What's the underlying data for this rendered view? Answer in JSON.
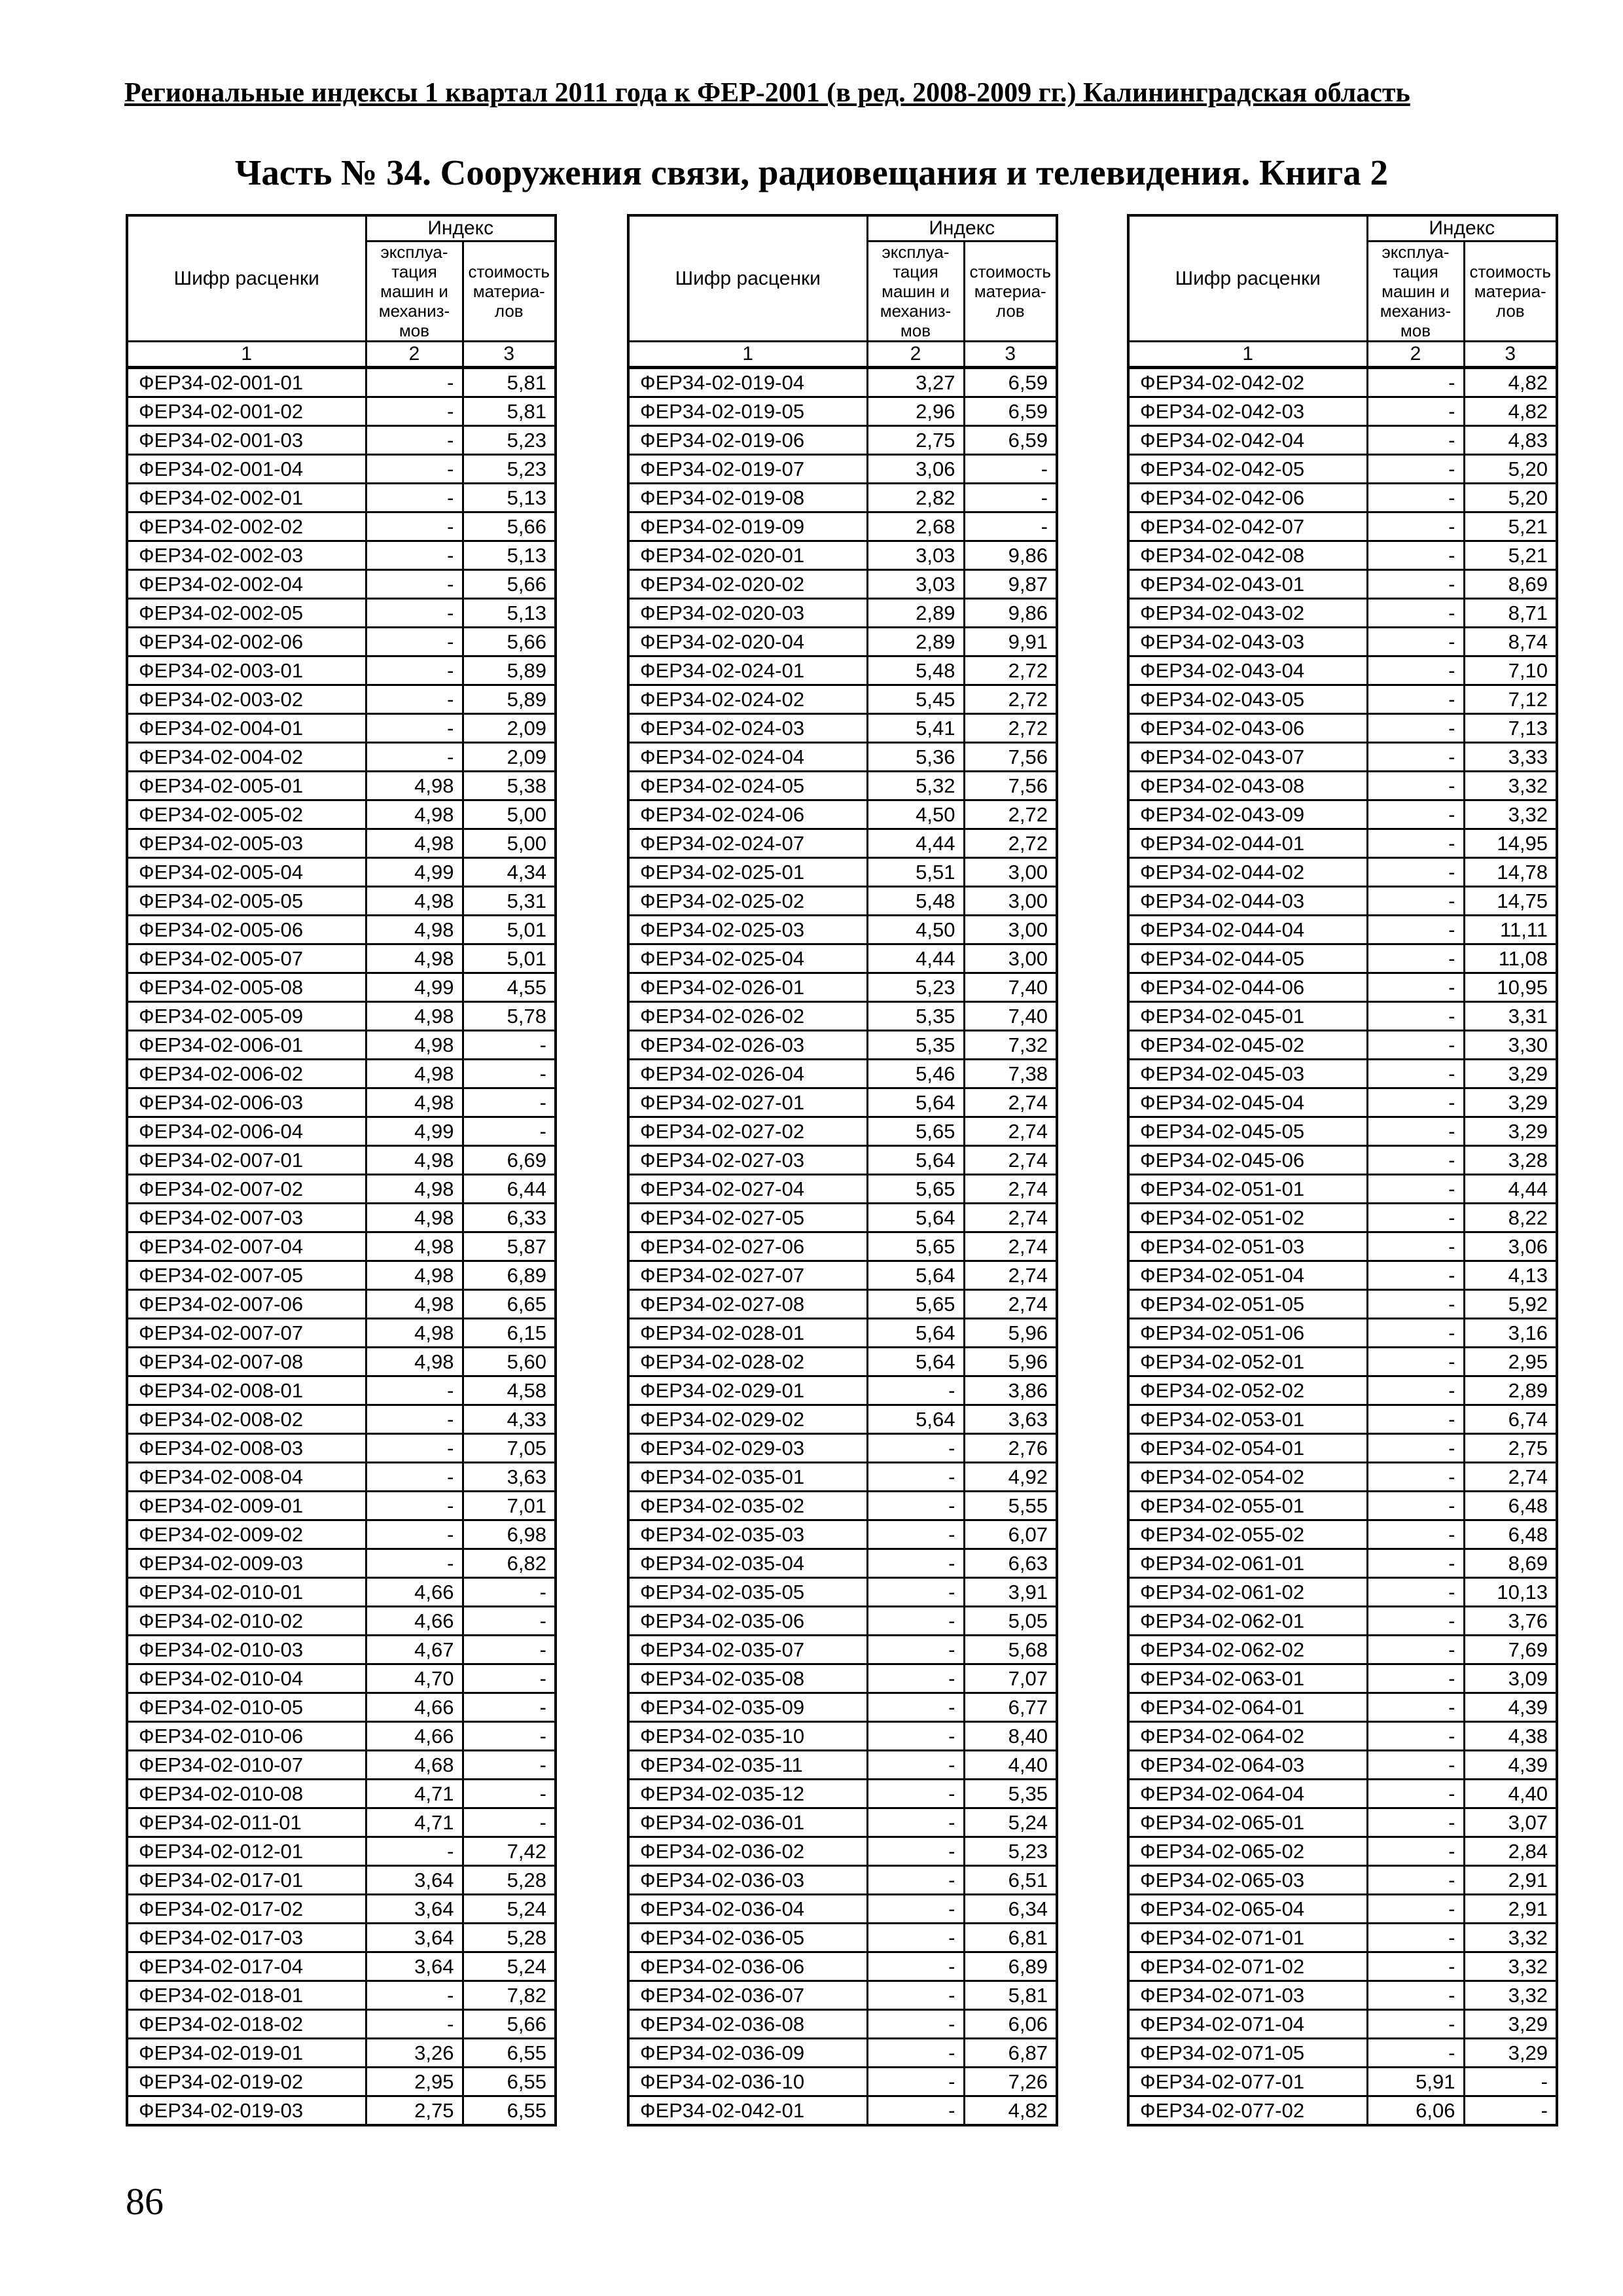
{
  "page": {
    "header": "Региональные индексы 1 квартал 2011 года к ФЕР-2001 (в ред. 2008-2009 гг.) Калининградская область",
    "title": "Часть № 34. Сооружения связи, радиовещания и телевидения. Книга 2",
    "page_number": "86"
  },
  "table_header": {
    "code": "Шифр расценки",
    "index": "Индекс",
    "col2": "эксплуа-\nтация\nмашин и\nмеханиз-\nмов",
    "col3": "стоимость\nматериа-\nлов",
    "nums": [
      "1",
      "2",
      "3"
    ]
  },
  "tables": [
    {
      "rows": [
        [
          "ФЕР34-02-001-01",
          "-",
          "5,81"
        ],
        [
          "ФЕР34-02-001-02",
          "-",
          "5,81"
        ],
        [
          "ФЕР34-02-001-03",
          "-",
          "5,23"
        ],
        [
          "ФЕР34-02-001-04",
          "-",
          "5,23"
        ],
        [
          "ФЕР34-02-002-01",
          "-",
          "5,13"
        ],
        [
          "ФЕР34-02-002-02",
          "-",
          "5,66"
        ],
        [
          "ФЕР34-02-002-03",
          "-",
          "5,13"
        ],
        [
          "ФЕР34-02-002-04",
          "-",
          "5,66"
        ],
        [
          "ФЕР34-02-002-05",
          "-",
          "5,13"
        ],
        [
          "ФЕР34-02-002-06",
          "-",
          "5,66"
        ],
        [
          "ФЕР34-02-003-01",
          "-",
          "5,89"
        ],
        [
          "ФЕР34-02-003-02",
          "-",
          "5,89"
        ],
        [
          "ФЕР34-02-004-01",
          "-",
          "2,09"
        ],
        [
          "ФЕР34-02-004-02",
          "-",
          "2,09"
        ],
        [
          "ФЕР34-02-005-01",
          "4,98",
          "5,38"
        ],
        [
          "ФЕР34-02-005-02",
          "4,98",
          "5,00"
        ],
        [
          "ФЕР34-02-005-03",
          "4,98",
          "5,00"
        ],
        [
          "ФЕР34-02-005-04",
          "4,99",
          "4,34"
        ],
        [
          "ФЕР34-02-005-05",
          "4,98",
          "5,31"
        ],
        [
          "ФЕР34-02-005-06",
          "4,98",
          "5,01"
        ],
        [
          "ФЕР34-02-005-07",
          "4,98",
          "5,01"
        ],
        [
          "ФЕР34-02-005-08",
          "4,99",
          "4,55"
        ],
        [
          "ФЕР34-02-005-09",
          "4,98",
          "5,78"
        ],
        [
          "ФЕР34-02-006-01",
          "4,98",
          "-"
        ],
        [
          "ФЕР34-02-006-02",
          "4,98",
          "-"
        ],
        [
          "ФЕР34-02-006-03",
          "4,98",
          "-"
        ],
        [
          "ФЕР34-02-006-04",
          "4,99",
          "-"
        ],
        [
          "ФЕР34-02-007-01",
          "4,98",
          "6,69"
        ],
        [
          "ФЕР34-02-007-02",
          "4,98",
          "6,44"
        ],
        [
          "ФЕР34-02-007-03",
          "4,98",
          "6,33"
        ],
        [
          "ФЕР34-02-007-04",
          "4,98",
          "5,87"
        ],
        [
          "ФЕР34-02-007-05",
          "4,98",
          "6,89"
        ],
        [
          "ФЕР34-02-007-06",
          "4,98",
          "6,65"
        ],
        [
          "ФЕР34-02-007-07",
          "4,98",
          "6,15"
        ],
        [
          "ФЕР34-02-007-08",
          "4,98",
          "5,60"
        ],
        [
          "ФЕР34-02-008-01",
          "-",
          "4,58"
        ],
        [
          "ФЕР34-02-008-02",
          "-",
          "4,33"
        ],
        [
          "ФЕР34-02-008-03",
          "-",
          "7,05"
        ],
        [
          "ФЕР34-02-008-04",
          "-",
          "3,63"
        ],
        [
          "ФЕР34-02-009-01",
          "-",
          "7,01"
        ],
        [
          "ФЕР34-02-009-02",
          "-",
          "6,98"
        ],
        [
          "ФЕР34-02-009-03",
          "-",
          "6,82"
        ],
        [
          "ФЕР34-02-010-01",
          "4,66",
          "-"
        ],
        [
          "ФЕР34-02-010-02",
          "4,66",
          "-"
        ],
        [
          "ФЕР34-02-010-03",
          "4,67",
          "-"
        ],
        [
          "ФЕР34-02-010-04",
          "4,70",
          "-"
        ],
        [
          "ФЕР34-02-010-05",
          "4,66",
          "-"
        ],
        [
          "ФЕР34-02-010-06",
          "4,66",
          "-"
        ],
        [
          "ФЕР34-02-010-07",
          "4,68",
          "-"
        ],
        [
          "ФЕР34-02-010-08",
          "4,71",
          "-"
        ],
        [
          "ФЕР34-02-011-01",
          "4,71",
          "-"
        ],
        [
          "ФЕР34-02-012-01",
          "-",
          "7,42"
        ],
        [
          "ФЕР34-02-017-01",
          "3,64",
          "5,28"
        ],
        [
          "ФЕР34-02-017-02",
          "3,64",
          "5,24"
        ],
        [
          "ФЕР34-02-017-03",
          "3,64",
          "5,28"
        ],
        [
          "ФЕР34-02-017-04",
          "3,64",
          "5,24"
        ],
        [
          "ФЕР34-02-018-01",
          "-",
          "7,82"
        ],
        [
          "ФЕР34-02-018-02",
          "-",
          "5,66"
        ],
        [
          "ФЕР34-02-019-01",
          "3,26",
          "6,55"
        ],
        [
          "ФЕР34-02-019-02",
          "2,95",
          "6,55"
        ],
        [
          "ФЕР34-02-019-03",
          "2,75",
          "6,55"
        ]
      ]
    },
    {
      "rows": [
        [
          "ФЕР34-02-019-04",
          "3,27",
          "6,59"
        ],
        [
          "ФЕР34-02-019-05",
          "2,96",
          "6,59"
        ],
        [
          "ФЕР34-02-019-06",
          "2,75",
          "6,59"
        ],
        [
          "ФЕР34-02-019-07",
          "3,06",
          "-"
        ],
        [
          "ФЕР34-02-019-08",
          "2,82",
          "-"
        ],
        [
          "ФЕР34-02-019-09",
          "2,68",
          "-"
        ],
        [
          "ФЕР34-02-020-01",
          "3,03",
          "9,86"
        ],
        [
          "ФЕР34-02-020-02",
          "3,03",
          "9,87"
        ],
        [
          "ФЕР34-02-020-03",
          "2,89",
          "9,86"
        ],
        [
          "ФЕР34-02-020-04",
          "2,89",
          "9,91"
        ],
        [
          "ФЕР34-02-024-01",
          "5,48",
          "2,72"
        ],
        [
          "ФЕР34-02-024-02",
          "5,45",
          "2,72"
        ],
        [
          "ФЕР34-02-024-03",
          "5,41",
          "2,72"
        ],
        [
          "ФЕР34-02-024-04",
          "5,36",
          "7,56"
        ],
        [
          "ФЕР34-02-024-05",
          "5,32",
          "7,56"
        ],
        [
          "ФЕР34-02-024-06",
          "4,50",
          "2,72"
        ],
        [
          "ФЕР34-02-024-07",
          "4,44",
          "2,72"
        ],
        [
          "ФЕР34-02-025-01",
          "5,51",
          "3,00"
        ],
        [
          "ФЕР34-02-025-02",
          "5,48",
          "3,00"
        ],
        [
          "ФЕР34-02-025-03",
          "4,50",
          "3,00"
        ],
        [
          "ФЕР34-02-025-04",
          "4,44",
          "3,00"
        ],
        [
          "ФЕР34-02-026-01",
          "5,23",
          "7,40"
        ],
        [
          "ФЕР34-02-026-02",
          "5,35",
          "7,40"
        ],
        [
          "ФЕР34-02-026-03",
          "5,35",
          "7,32"
        ],
        [
          "ФЕР34-02-026-04",
          "5,46",
          "7,38"
        ],
        [
          "ФЕР34-02-027-01",
          "5,64",
          "2,74"
        ],
        [
          "ФЕР34-02-027-02",
          "5,65",
          "2,74"
        ],
        [
          "ФЕР34-02-027-03",
          "5,64",
          "2,74"
        ],
        [
          "ФЕР34-02-027-04",
          "5,65",
          "2,74"
        ],
        [
          "ФЕР34-02-027-05",
          "5,64",
          "2,74"
        ],
        [
          "ФЕР34-02-027-06",
          "5,65",
          "2,74"
        ],
        [
          "ФЕР34-02-027-07",
          "5,64",
          "2,74"
        ],
        [
          "ФЕР34-02-027-08",
          "5,65",
          "2,74"
        ],
        [
          "ФЕР34-02-028-01",
          "5,64",
          "5,96"
        ],
        [
          "ФЕР34-02-028-02",
          "5,64",
          "5,96"
        ],
        [
          "ФЕР34-02-029-01",
          "-",
          "3,86"
        ],
        [
          "ФЕР34-02-029-02",
          "5,64",
          "3,63"
        ],
        [
          "ФЕР34-02-029-03",
          "-",
          "2,76"
        ],
        [
          "ФЕР34-02-035-01",
          "-",
          "4,92"
        ],
        [
          "ФЕР34-02-035-02",
          "-",
          "5,55"
        ],
        [
          "ФЕР34-02-035-03",
          "-",
          "6,07"
        ],
        [
          "ФЕР34-02-035-04",
          "-",
          "6,63"
        ],
        [
          "ФЕР34-02-035-05",
          "-",
          "3,91"
        ],
        [
          "ФЕР34-02-035-06",
          "-",
          "5,05"
        ],
        [
          "ФЕР34-02-035-07",
          "-",
          "5,68"
        ],
        [
          "ФЕР34-02-035-08",
          "-",
          "7,07"
        ],
        [
          "ФЕР34-02-035-09",
          "-",
          "6,77"
        ],
        [
          "ФЕР34-02-035-10",
          "-",
          "8,40"
        ],
        [
          "ФЕР34-02-035-11",
          "-",
          "4,40"
        ],
        [
          "ФЕР34-02-035-12",
          "-",
          "5,35"
        ],
        [
          "ФЕР34-02-036-01",
          "-",
          "5,24"
        ],
        [
          "ФЕР34-02-036-02",
          "-",
          "5,23"
        ],
        [
          "ФЕР34-02-036-03",
          "-",
          "6,51"
        ],
        [
          "ФЕР34-02-036-04",
          "-",
          "6,34"
        ],
        [
          "ФЕР34-02-036-05",
          "-",
          "6,81"
        ],
        [
          "ФЕР34-02-036-06",
          "-",
          "6,89"
        ],
        [
          "ФЕР34-02-036-07",
          "-",
          "5,81"
        ],
        [
          "ФЕР34-02-036-08",
          "-",
          "6,06"
        ],
        [
          "ФЕР34-02-036-09",
          "-",
          "6,87"
        ],
        [
          "ФЕР34-02-036-10",
          "-",
          "7,26"
        ],
        [
          "ФЕР34-02-042-01",
          "-",
          "4,82"
        ]
      ]
    },
    {
      "rows": [
        [
          "ФЕР34-02-042-02",
          "-",
          "4,82"
        ],
        [
          "ФЕР34-02-042-03",
          "-",
          "4,82"
        ],
        [
          "ФЕР34-02-042-04",
          "-",
          "4,83"
        ],
        [
          "ФЕР34-02-042-05",
          "-",
          "5,20"
        ],
        [
          "ФЕР34-02-042-06",
          "-",
          "5,20"
        ],
        [
          "ФЕР34-02-042-07",
          "-",
          "5,21"
        ],
        [
          "ФЕР34-02-042-08",
          "-",
          "5,21"
        ],
        [
          "ФЕР34-02-043-01",
          "-",
          "8,69"
        ],
        [
          "ФЕР34-02-043-02",
          "-",
          "8,71"
        ],
        [
          "ФЕР34-02-043-03",
          "-",
          "8,74"
        ],
        [
          "ФЕР34-02-043-04",
          "-",
          "7,10"
        ],
        [
          "ФЕР34-02-043-05",
          "-",
          "7,12"
        ],
        [
          "ФЕР34-02-043-06",
          "-",
          "7,13"
        ],
        [
          "ФЕР34-02-043-07",
          "-",
          "3,33"
        ],
        [
          "ФЕР34-02-043-08",
          "-",
          "3,32"
        ],
        [
          "ФЕР34-02-043-09",
          "-",
          "3,32"
        ],
        [
          "ФЕР34-02-044-01",
          "-",
          "14,95"
        ],
        [
          "ФЕР34-02-044-02",
          "-",
          "14,78"
        ],
        [
          "ФЕР34-02-044-03",
          "-",
          "14,75"
        ],
        [
          "ФЕР34-02-044-04",
          "-",
          "11,11"
        ],
        [
          "ФЕР34-02-044-05",
          "-",
          "11,08"
        ],
        [
          "ФЕР34-02-044-06",
          "-",
          "10,95"
        ],
        [
          "ФЕР34-02-045-01",
          "-",
          "3,31"
        ],
        [
          "ФЕР34-02-045-02",
          "-",
          "3,30"
        ],
        [
          "ФЕР34-02-045-03",
          "-",
          "3,29"
        ],
        [
          "ФЕР34-02-045-04",
          "-",
          "3,29"
        ],
        [
          "ФЕР34-02-045-05",
          "-",
          "3,29"
        ],
        [
          "ФЕР34-02-045-06",
          "-",
          "3,28"
        ],
        [
          "ФЕР34-02-051-01",
          "-",
          "4,44"
        ],
        [
          "ФЕР34-02-051-02",
          "-",
          "8,22"
        ],
        [
          "ФЕР34-02-051-03",
          "-",
          "3,06"
        ],
        [
          "ФЕР34-02-051-04",
          "-",
          "4,13"
        ],
        [
          "ФЕР34-02-051-05",
          "-",
          "5,92"
        ],
        [
          "ФЕР34-02-051-06",
          "-",
          "3,16"
        ],
        [
          "ФЕР34-02-052-01",
          "-",
          "2,95"
        ],
        [
          "ФЕР34-02-052-02",
          "-",
          "2,89"
        ],
        [
          "ФЕР34-02-053-01",
          "-",
          "6,74"
        ],
        [
          "ФЕР34-02-054-01",
          "-",
          "2,75"
        ],
        [
          "ФЕР34-02-054-02",
          "-",
          "2,74"
        ],
        [
          "ФЕР34-02-055-01",
          "-",
          "6,48"
        ],
        [
          "ФЕР34-02-055-02",
          "-",
          "6,48"
        ],
        [
          "ФЕР34-02-061-01",
          "-",
          "8,69"
        ],
        [
          "ФЕР34-02-061-02",
          "-",
          "10,13"
        ],
        [
          "ФЕР34-02-062-01",
          "-",
          "3,76"
        ],
        [
          "ФЕР34-02-062-02",
          "-",
          "7,69"
        ],
        [
          "ФЕР34-02-063-01",
          "-",
          "3,09"
        ],
        [
          "ФЕР34-02-064-01",
          "-",
          "4,39"
        ],
        [
          "ФЕР34-02-064-02",
          "-",
          "4,38"
        ],
        [
          "ФЕР34-02-064-03",
          "-",
          "4,39"
        ],
        [
          "ФЕР34-02-064-04",
          "-",
          "4,40"
        ],
        [
          "ФЕР34-02-065-01",
          "-",
          "3,07"
        ],
        [
          "ФЕР34-02-065-02",
          "-",
          "2,84"
        ],
        [
          "ФЕР34-02-065-03",
          "-",
          "2,91"
        ],
        [
          "ФЕР34-02-065-04",
          "-",
          "2,91"
        ],
        [
          "ФЕР34-02-071-01",
          "-",
          "3,32"
        ],
        [
          "ФЕР34-02-071-02",
          "-",
          "3,32"
        ],
        [
          "ФЕР34-02-071-03",
          "-",
          "3,32"
        ],
        [
          "ФЕР34-02-071-04",
          "-",
          "3,29"
        ],
        [
          "ФЕР34-02-071-05",
          "-",
          "3,29"
        ],
        [
          "ФЕР34-02-077-01",
          "5,91",
          "-"
        ],
        [
          "ФЕР34-02-077-02",
          "6,06",
          "-"
        ]
      ]
    }
  ]
}
